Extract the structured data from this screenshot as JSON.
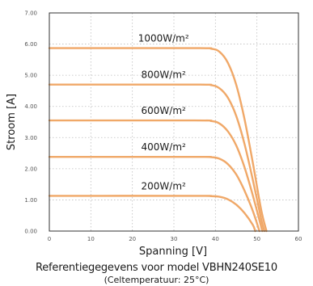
{
  "caption": {
    "line1": "Referentiegegevens voor model VBHN240SE10",
    "line2": "(Celtemperatuur: 25°C)"
  },
  "colors": {
    "curve": "#f0a868",
    "plot_border": "#333333",
    "grid": "#bdbdbd",
    "background": "#ffffff"
  },
  "chart_data": {
    "type": "line",
    "title": "",
    "xlabel": "Spanning [V]",
    "ylabel": "Stroom [A]",
    "xlim": [
      0,
      60
    ],
    "ylim": [
      0,
      7
    ],
    "xticks": [
      0,
      10,
      20,
      30,
      40,
      50,
      60
    ],
    "yticks": [
      0,
      1,
      2,
      3,
      4,
      5,
      6,
      7
    ],
    "xtick_labels": [
      "0",
      "10",
      "20",
      "30",
      "40",
      "50",
      "60"
    ],
    "ytick_labels": [
      "0.00",
      "1.00",
      "2.00",
      "3.00",
      "4.00",
      "5.00",
      "6.00",
      "7.00"
    ],
    "grid": true,
    "legend": "none",
    "series": [
      {
        "name": "1000W/m²",
        "x": [
          0,
          35,
          39,
          41,
          43,
          45,
          47,
          49,
          51,
          52.3
        ],
        "y": [
          5.87,
          5.87,
          5.85,
          5.75,
          5.4,
          4.7,
          3.6,
          2.2,
          0.7,
          0.0
        ]
      },
      {
        "name": "800W/m²",
        "x": [
          0,
          35,
          39,
          41,
          43,
          45,
          47,
          49,
          51,
          51.8
        ],
        "y": [
          4.7,
          4.7,
          4.68,
          4.58,
          4.28,
          3.7,
          2.8,
          1.65,
          0.4,
          0.0
        ]
      },
      {
        "name": "600W/m²",
        "x": [
          0,
          35,
          39,
          41,
          43,
          45,
          47,
          49,
          51,
          51.3
        ],
        "y": [
          3.55,
          3.55,
          3.53,
          3.45,
          3.2,
          2.75,
          2.05,
          1.15,
          0.15,
          0.0
        ]
      },
      {
        "name": "400W/m²",
        "x": [
          0,
          35,
          39,
          41,
          43,
          45,
          47,
          49,
          50.6
        ],
        "y": [
          2.38,
          2.38,
          2.37,
          2.32,
          2.15,
          1.82,
          1.3,
          0.65,
          0.0
        ]
      },
      {
        "name": "200W/m²",
        "x": [
          0,
          35,
          39,
          41,
          43,
          45,
          47,
          49,
          49.6
        ],
        "y": [
          1.13,
          1.13,
          1.12,
          1.1,
          1.02,
          0.85,
          0.58,
          0.2,
          0.0
        ]
      }
    ]
  }
}
